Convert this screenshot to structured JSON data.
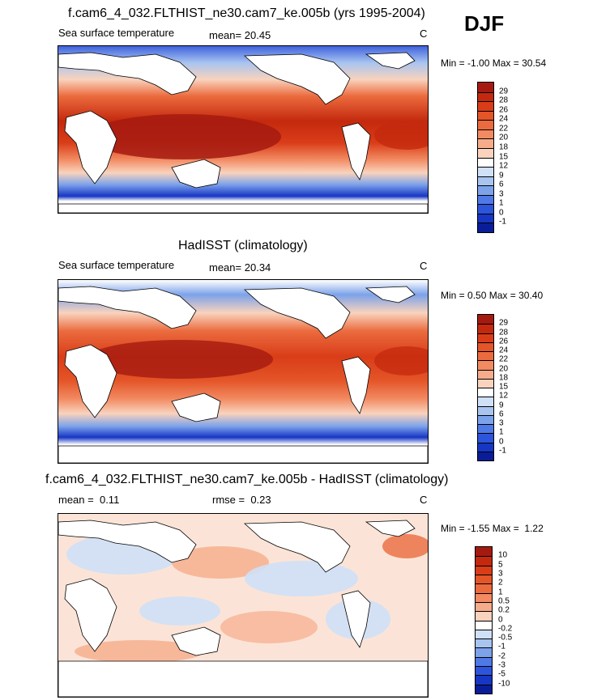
{
  "season": "DJF",
  "chart_data": [
    {
      "type": "heatmap",
      "title": "f.cam6_4_032.FLTHIST_ne30.cam7_ke.005b (yrs 1995-2004)",
      "variable": "Sea surface temperature",
      "mean_label": "mean=",
      "mean": "20.45",
      "units": "C",
      "min_label": "Min =",
      "min": "-1.00",
      "max_label": "Max =",
      "max": "30.54",
      "levels": [
        "29",
        "28",
        "26",
        "24",
        "22",
        "20",
        "18",
        "15",
        "12",
        "9",
        "6",
        "3",
        "1",
        "0",
        "-1"
      ],
      "colors": [
        "#a51a10",
        "#c4290e",
        "#d93d18",
        "#e45528",
        "#eb6b3e",
        "#f28a62",
        "#f6ac8b",
        "#f9d3bd",
        "#ffffff",
        "#cfe0f7",
        "#a8c4f0",
        "#7ca2ea",
        "#4f79e6",
        "#2c55dc",
        "#1736c4",
        "#0a1d98"
      ]
    },
    {
      "type": "heatmap",
      "title": "HadISST (climatology)",
      "variable": "Sea surface temperature",
      "mean_label": "mean=",
      "mean": "20.34",
      "units": "C",
      "min_label": "Min =",
      "min": "0.50",
      "max_label": "Max =",
      "max": "30.40",
      "levels": [
        "29",
        "28",
        "26",
        "24",
        "22",
        "20",
        "18",
        "15",
        "12",
        "9",
        "6",
        "3",
        "1",
        "0",
        "-1"
      ],
      "colors": [
        "#a51a10",
        "#c4290e",
        "#d93d18",
        "#e45528",
        "#eb6b3e",
        "#f28a62",
        "#f6ac8b",
        "#f9d3bd",
        "#ffffff",
        "#cfe0f7",
        "#a8c4f0",
        "#7ca2ea",
        "#4f79e6",
        "#2c55dc",
        "#1736c4",
        "#0a1d98"
      ]
    },
    {
      "type": "heatmap",
      "title": "f.cam6_4_032.FLTHIST_ne30.cam7_ke.005b - HadISST (climatology)",
      "mean_label": "mean =",
      "mean": "0.11",
      "rmse_label": "rmse =",
      "rmse": "0.23",
      "units": "C",
      "min_label": "Min =",
      "min": "-1.55",
      "max_label": "Max =",
      "max": "1.22",
      "levels": [
        "10",
        "5",
        "3",
        "2",
        "1",
        "0.5",
        "0.2",
        "0",
        "-0.2",
        "-0.5",
        "-1",
        "-2",
        "-3",
        "-5",
        "-10"
      ],
      "colors": [
        "#a51a10",
        "#c4290e",
        "#d93d18",
        "#e45528",
        "#eb6b3e",
        "#f28a62",
        "#f6ac8b",
        "#f9d3bd",
        "#ffffff",
        "#cfe0f7",
        "#a8c4f0",
        "#7ca2ea",
        "#4f79e6",
        "#2c55dc",
        "#1736c4",
        "#0a1d98"
      ]
    }
  ]
}
